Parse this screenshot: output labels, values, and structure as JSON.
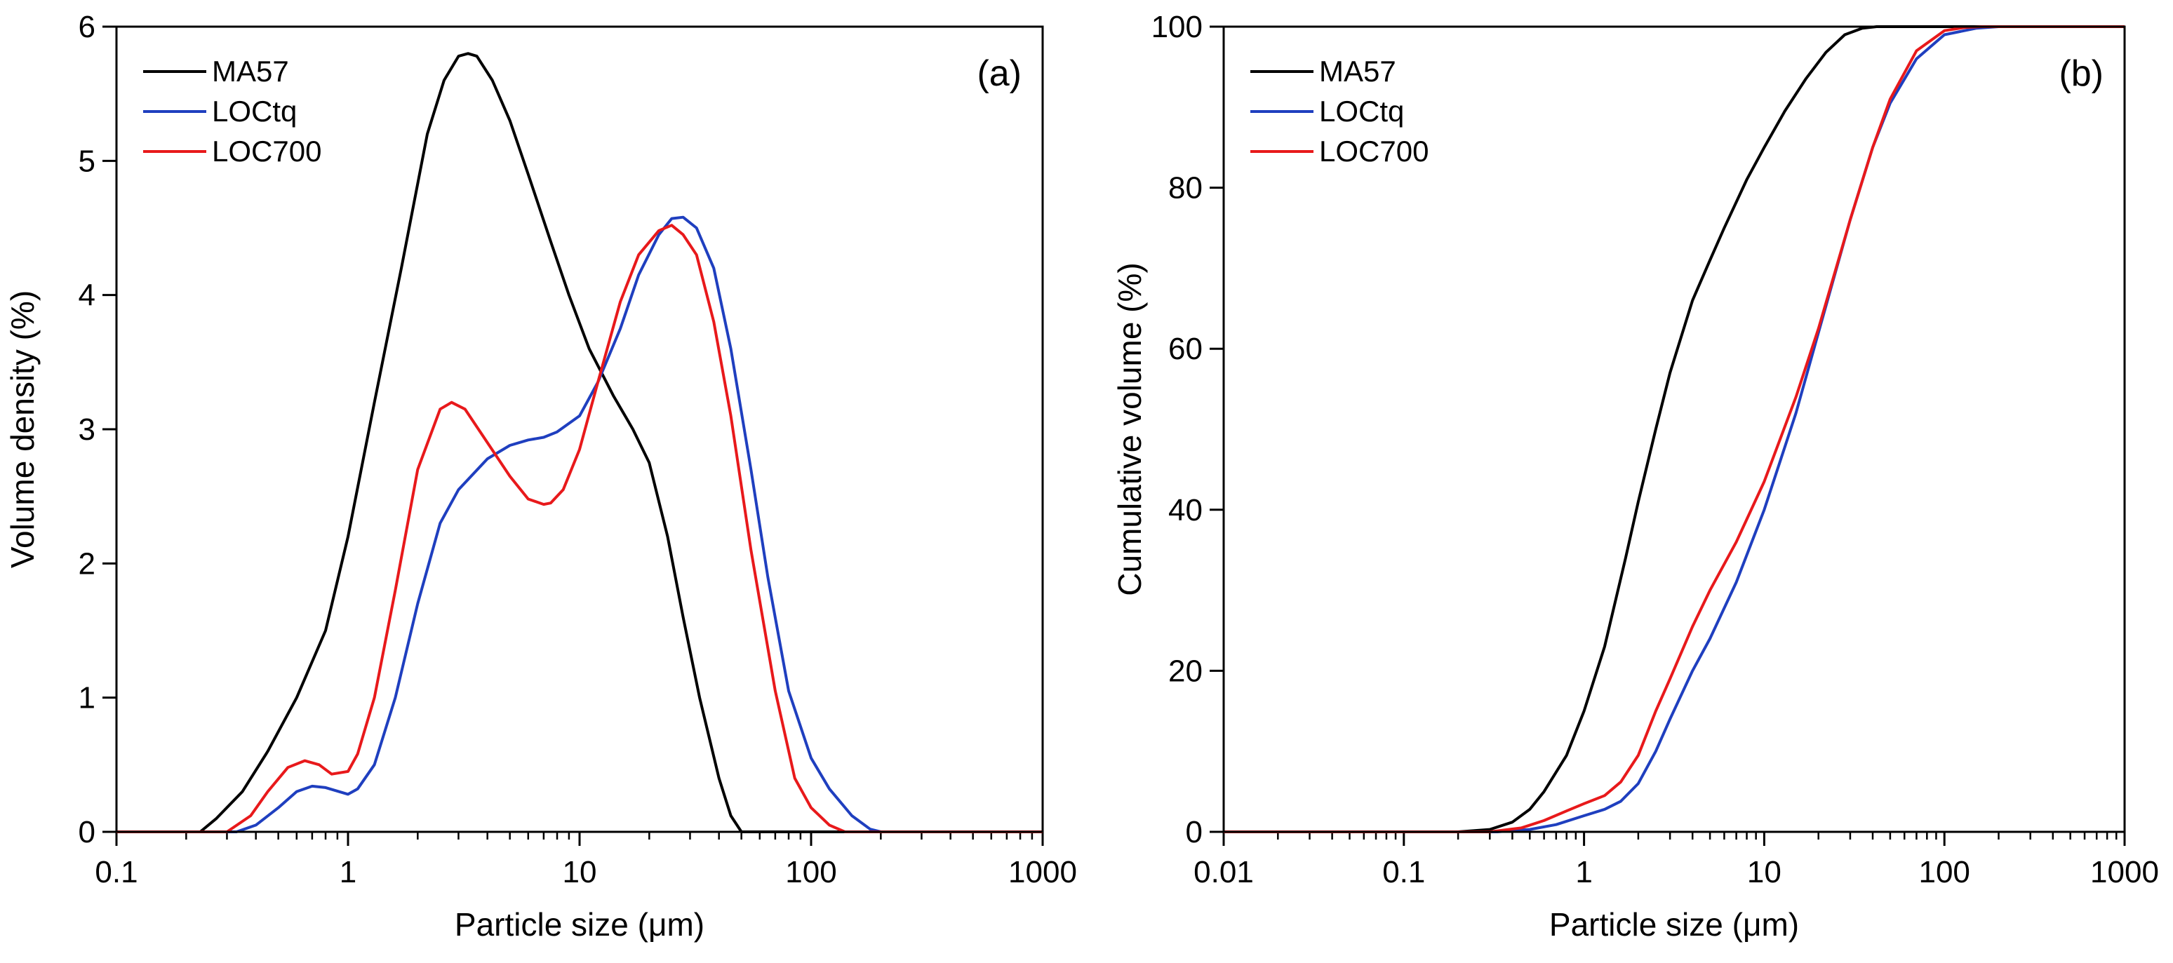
{
  "chart_data": [
    {
      "type": "line",
      "panel_label": "(a)",
      "xlabel": "Particle size (μm)",
      "ylabel": "Volume density (%)",
      "xscale": "log",
      "xlim": [
        0.1,
        1000
      ],
      "ylim": [
        0,
        6
      ],
      "xticks": [
        0.1,
        1,
        10,
        100,
        1000
      ],
      "xtick_labels": [
        "0.1",
        "1",
        "10",
        "100",
        "1000"
      ],
      "yticks": [
        0,
        1,
        2,
        3,
        4,
        5,
        6
      ],
      "ytick_labels": [
        "0",
        "1",
        "2",
        "3",
        "4",
        "5",
        "6"
      ],
      "legend_position": "top-left",
      "series": [
        {
          "name": "MA57",
          "color": "#000000",
          "x": [
            0.1,
            0.23,
            0.27,
            0.35,
            0.45,
            0.6,
            0.8,
            1.0,
            1.3,
            1.7,
            2.2,
            2.6,
            3.0,
            3.3,
            3.6,
            4.2,
            5.0,
            6.0,
            7.5,
            9.0,
            11.0,
            14.0,
            17.0,
            20.0,
            24.0,
            28.0,
            33.0,
            40.0,
            45.0,
            50.0,
            1000
          ],
          "y": [
            0,
            0,
            0.1,
            0.3,
            0.6,
            1.0,
            1.5,
            2.2,
            3.2,
            4.2,
            5.2,
            5.6,
            5.78,
            5.8,
            5.78,
            5.6,
            5.3,
            4.9,
            4.4,
            4.0,
            3.6,
            3.25,
            3.0,
            2.75,
            2.2,
            1.6,
            1.0,
            0.4,
            0.12,
            0,
            0
          ]
        },
        {
          "name": "LOCtq",
          "color": "#1f3fbf",
          "x": [
            0.1,
            0.33,
            0.4,
            0.5,
            0.6,
            0.7,
            0.8,
            1.0,
            1.1,
            1.3,
            1.6,
            2.0,
            2.5,
            3.0,
            4.0,
            5.0,
            6.0,
            7.0,
            8.0,
            10.0,
            12.0,
            15.0,
            18.0,
            22.0,
            25.0,
            28.0,
            32.0,
            38.0,
            45.0,
            55.0,
            65.0,
            80.0,
            100.0,
            120.0,
            150.0,
            180.0,
            200.0,
            1000
          ],
          "y": [
            0,
            0,
            0.05,
            0.18,
            0.3,
            0.34,
            0.33,
            0.28,
            0.32,
            0.5,
            1.0,
            1.7,
            2.3,
            2.55,
            2.78,
            2.88,
            2.92,
            2.94,
            2.98,
            3.1,
            3.35,
            3.75,
            4.15,
            4.45,
            4.57,
            4.58,
            4.5,
            4.2,
            3.6,
            2.7,
            1.9,
            1.05,
            0.55,
            0.32,
            0.12,
            0.02,
            0,
            0
          ]
        },
        {
          "name": "LOC700",
          "color": "#e8191b",
          "x": [
            0.1,
            0.3,
            0.38,
            0.45,
            0.55,
            0.65,
            0.75,
            0.85,
            1.0,
            1.1,
            1.3,
            1.6,
            2.0,
            2.5,
            2.8,
            3.2,
            4.0,
            5.0,
            6.0,
            7.0,
            7.5,
            8.5,
            10.0,
            12.0,
            15.0,
            18.0,
            22.0,
            25.0,
            28.0,
            32.0,
            38.0,
            45.0,
            55.0,
            70.0,
            85.0,
            100.0,
            120.0,
            140.0,
            1000
          ],
          "y": [
            0,
            0,
            0.12,
            0.3,
            0.48,
            0.53,
            0.5,
            0.43,
            0.45,
            0.58,
            1.0,
            1.8,
            2.7,
            3.15,
            3.2,
            3.15,
            2.9,
            2.65,
            2.48,
            2.44,
            2.45,
            2.55,
            2.85,
            3.35,
            3.95,
            4.3,
            4.48,
            4.52,
            4.45,
            4.3,
            3.8,
            3.1,
            2.1,
            1.05,
            0.4,
            0.18,
            0.05,
            0,
            0
          ]
        }
      ]
    },
    {
      "type": "line",
      "panel_label": "(b)",
      "xlabel": "Particle size (μm)",
      "ylabel": "Cumulative volume (%)",
      "xscale": "log",
      "xlim": [
        0.01,
        1000
      ],
      "ylim": [
        0,
        100
      ],
      "xticks": [
        0.01,
        0.1,
        1,
        10,
        100,
        1000
      ],
      "xtick_labels": [
        "0.01",
        "0.1",
        "1",
        "10",
        "100",
        "1000"
      ],
      "yticks": [
        0,
        20,
        40,
        60,
        80,
        100
      ],
      "ytick_labels": [
        "0",
        "20",
        "40",
        "60",
        "80",
        "100"
      ],
      "legend_position": "top-left",
      "series": [
        {
          "name": "MA57",
          "color": "#000000",
          "x": [
            0.01,
            0.2,
            0.3,
            0.4,
            0.5,
            0.6,
            0.8,
            1.0,
            1.3,
            1.7,
            2.0,
            2.5,
            3.0,
            4.0,
            5.0,
            6.0,
            8.0,
            10.0,
            13.0,
            17.0,
            22.0,
            28.0,
            35.0,
            42.0,
            50.0,
            1000
          ],
          "y": [
            0,
            0,
            0.3,
            1.2,
            2.8,
            5.0,
            9.5,
            15.0,
            23.0,
            34.0,
            41.0,
            50.0,
            57.0,
            66.0,
            71.0,
            75.0,
            81.0,
            85.0,
            89.5,
            93.5,
            96.8,
            99.0,
            99.8,
            100,
            100,
            100
          ]
        },
        {
          "name": "LOCtq",
          "color": "#1f3fbf",
          "x": [
            0.01,
            0.33,
            0.5,
            0.7,
            1.0,
            1.3,
            1.6,
            2.0,
            2.5,
            3.0,
            4.0,
            5.0,
            7.0,
            10.0,
            15.0,
            20.0,
            30.0,
            40.0,
            50.0,
            70.0,
            100.0,
            150.0,
            200.0,
            1000
          ],
          "y": [
            0,
            0,
            0.3,
            0.9,
            2.0,
            2.8,
            3.8,
            6.0,
            10.0,
            14.0,
            20.0,
            24.0,
            31.0,
            40.0,
            52.0,
            62.0,
            76.0,
            85.0,
            90.5,
            96.0,
            99.0,
            99.8,
            100,
            100
          ]
        },
        {
          "name": "LOC700",
          "color": "#e8191b",
          "x": [
            0.01,
            0.3,
            0.45,
            0.6,
            0.8,
            1.0,
            1.3,
            1.6,
            2.0,
            2.5,
            3.0,
            4.0,
            5.0,
            7.0,
            10.0,
            15.0,
            20.0,
            30.0,
            40.0,
            50.0,
            70.0,
            100.0,
            130.0,
            160.0,
            1000
          ],
          "y": [
            0,
            0,
            0.5,
            1.4,
            2.6,
            3.5,
            4.5,
            6.2,
            9.5,
            15.0,
            19.0,
            25.5,
            30.0,
            36.0,
            43.5,
            54.0,
            62.5,
            76.0,
            85.0,
            91.0,
            97.0,
            99.5,
            99.9,
            100,
            100
          ]
        }
      ]
    }
  ]
}
